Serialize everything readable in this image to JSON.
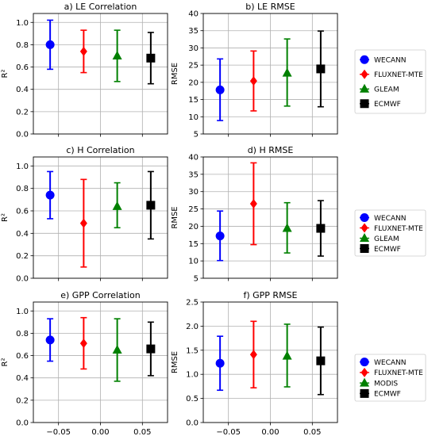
{
  "colors": {
    "WECANN": "#0000ff",
    "FLUXNET-MTE": "#ff0000",
    "GLEAM": "#008000",
    "MODIS": "#008000",
    "ECMWF": "#000000",
    "grid": "#b0b0b0"
  },
  "markers": {
    "WECANN": "circle",
    "FLUXNET-MTE": "diamond",
    "GLEAM": "triangle",
    "MODIS": "triangle",
    "ECMWF": "square"
  },
  "chart_data": [
    {
      "type": "scatter",
      "title": "a) LE Correlation",
      "xlabel": "",
      "ylabel": "R²",
      "xlim": [
        -0.08,
        0.08
      ],
      "ylim": [
        0,
        1.08
      ],
      "yticks": [
        0.0,
        0.2,
        0.4,
        0.6,
        0.8,
        1.0
      ],
      "yticklabels": [
        "0.0",
        "0.2",
        "0.4",
        "0.6",
        "0.8",
        "1.0"
      ],
      "xticks": [
        -0.05,
        0.0,
        0.05
      ],
      "xticklabels": [],
      "grid": true,
      "series": [
        {
          "name": "WECANN",
          "x": -0.06,
          "y": 0.8,
          "low": 0.58,
          "high": 1.02
        },
        {
          "name": "FLUXNET-MTE",
          "x": -0.02,
          "y": 0.74,
          "low": 0.55,
          "high": 0.93
        },
        {
          "name": "GLEAM",
          "x": 0.02,
          "y": 0.7,
          "low": 0.47,
          "high": 0.93
        },
        {
          "name": "ECMWF",
          "x": 0.06,
          "y": 0.68,
          "low": 0.45,
          "high": 0.91
        }
      ]
    },
    {
      "type": "scatter",
      "title": "b) LE RMSE",
      "xlabel": "",
      "ylabel": "RMSE",
      "xlim": [
        -0.08,
        0.08
      ],
      "ylim": [
        5,
        40
      ],
      "yticks": [
        5,
        10,
        15,
        20,
        25,
        30,
        35,
        40
      ],
      "yticklabels": [
        "5",
        "10",
        "15",
        "20",
        "25",
        "30",
        "35",
        "40"
      ],
      "xticks": [
        -0.05,
        0.0,
        0.05
      ],
      "xticklabels": [],
      "grid": true,
      "series": [
        {
          "name": "WECANN",
          "x": -0.06,
          "y": 17.8,
          "low": 8.9,
          "high": 26.8
        },
        {
          "name": "FLUXNET-MTE",
          "x": -0.02,
          "y": 20.4,
          "low": 11.7,
          "high": 29.1
        },
        {
          "name": "GLEAM",
          "x": 0.02,
          "y": 22.7,
          "low": 13.1,
          "high": 32.6
        },
        {
          "name": "ECMWF",
          "x": 0.06,
          "y": 23.9,
          "low": 12.9,
          "high": 34.9
        }
      ]
    },
    {
      "type": "scatter",
      "title": "c) H Correlation",
      "xlabel": "",
      "ylabel": "R²",
      "xlim": [
        -0.08,
        0.08
      ],
      "ylim": [
        0,
        1.08
      ],
      "yticks": [
        0.0,
        0.2,
        0.4,
        0.6,
        0.8,
        1.0
      ],
      "yticklabels": [
        "0.0",
        "0.2",
        "0.4",
        "0.6",
        "0.8",
        "1.0"
      ],
      "xticks": [
        -0.05,
        0.0,
        0.05
      ],
      "xticklabels": [],
      "grid": true,
      "series": [
        {
          "name": "WECANN",
          "x": -0.06,
          "y": 0.74,
          "low": 0.53,
          "high": 0.95
        },
        {
          "name": "FLUXNET-MTE",
          "x": -0.02,
          "y": 0.49,
          "low": 0.1,
          "high": 0.88
        },
        {
          "name": "GLEAM",
          "x": 0.02,
          "y": 0.64,
          "low": 0.45,
          "high": 0.85
        },
        {
          "name": "ECMWF",
          "x": 0.06,
          "y": 0.65,
          "low": 0.35,
          "high": 0.95
        }
      ]
    },
    {
      "type": "scatter",
      "title": "d) H RMSE",
      "xlabel": "",
      "ylabel": "RMSE",
      "xlim": [
        -0.08,
        0.08
      ],
      "ylim": [
        5,
        40
      ],
      "yticks": [
        5,
        10,
        15,
        20,
        25,
        30,
        35,
        40
      ],
      "yticklabels": [
        "5",
        "10",
        "15",
        "20",
        "25",
        "30",
        "35",
        "40"
      ],
      "xticks": [
        -0.05,
        0.0,
        0.05
      ],
      "xticklabels": [],
      "grid": true,
      "series": [
        {
          "name": "WECANN",
          "x": -0.06,
          "y": 17.2,
          "low": 10.1,
          "high": 24.4
        },
        {
          "name": "FLUXNET-MTE",
          "x": -0.02,
          "y": 26.5,
          "low": 14.7,
          "high": 38.3
        },
        {
          "name": "GLEAM",
          "x": 0.02,
          "y": 19.4,
          "low": 12.3,
          "high": 26.8
        },
        {
          "name": "ECMWF",
          "x": 0.06,
          "y": 19.4,
          "low": 11.4,
          "high": 27.4
        }
      ]
    },
    {
      "type": "scatter",
      "title": "e) GPP Correlation",
      "xlabel": "",
      "ylabel": "R²",
      "xlim": [
        -0.08,
        0.08
      ],
      "ylim": [
        0,
        1.08
      ],
      "yticks": [
        0.0,
        0.2,
        0.4,
        0.6,
        0.8,
        1.0
      ],
      "yticklabels": [
        "0.0",
        "0.2",
        "0.4",
        "0.6",
        "0.8",
        "1.0"
      ],
      "xticks": [
        -0.05,
        0.0,
        0.05
      ],
      "xticklabels": [
        "−0.05",
        "0.00",
        "0.05"
      ],
      "grid": true,
      "series": [
        {
          "name": "WECANN",
          "x": -0.06,
          "y": 0.74,
          "low": 0.55,
          "high": 0.93
        },
        {
          "name": "FLUXNET-MTE",
          "x": -0.02,
          "y": 0.71,
          "low": 0.48,
          "high": 0.94
        },
        {
          "name": "MODIS",
          "x": 0.02,
          "y": 0.65,
          "low": 0.37,
          "high": 0.93
        },
        {
          "name": "ECMWF",
          "x": 0.06,
          "y": 0.66,
          "low": 0.42,
          "high": 0.9
        }
      ]
    },
    {
      "type": "scatter",
      "title": "f) GPP RMSE",
      "xlabel": "",
      "ylabel": "RMSE",
      "xlim": [
        -0.08,
        0.08
      ],
      "ylim": [
        0.0,
        2.5
      ],
      "yticks": [
        0.0,
        0.5,
        1.0,
        1.5,
        2.0,
        2.5
      ],
      "yticklabels": [
        "0.0",
        "0.5",
        "1.0",
        "1.5",
        "2.0",
        "2.5"
      ],
      "xticks": [
        -0.05,
        0.0,
        0.05
      ],
      "xticklabels": [
        "−0.05",
        "0.00",
        "0.05"
      ],
      "grid": true,
      "series": [
        {
          "name": "WECANN",
          "x": -0.06,
          "y": 1.23,
          "low": 0.67,
          "high": 1.79
        },
        {
          "name": "FLUXNET-MTE",
          "x": -0.02,
          "y": 1.41,
          "low": 0.72,
          "high": 2.1
        },
        {
          "name": "MODIS",
          "x": 0.02,
          "y": 1.38,
          "low": 0.74,
          "high": 2.04
        },
        {
          "name": "ECMWF",
          "x": 0.06,
          "y": 1.28,
          "low": 0.58,
          "high": 1.98
        }
      ]
    }
  ],
  "legends": [
    {
      "placement": "right of row 1",
      "entries": [
        "WECANN",
        "FLUXNET-MTE",
        "GLEAM",
        "ECMWF"
      ]
    },
    {
      "placement": "right of row 2",
      "entries": [
        "WECANN",
        "FLUXNET-MTE",
        "GLEAM",
        "ECMWF"
      ]
    },
    {
      "placement": "right of row 3",
      "entries": [
        "WECANN",
        "FLUXNET-MTE",
        "MODIS",
        "ECMWF"
      ]
    }
  ]
}
